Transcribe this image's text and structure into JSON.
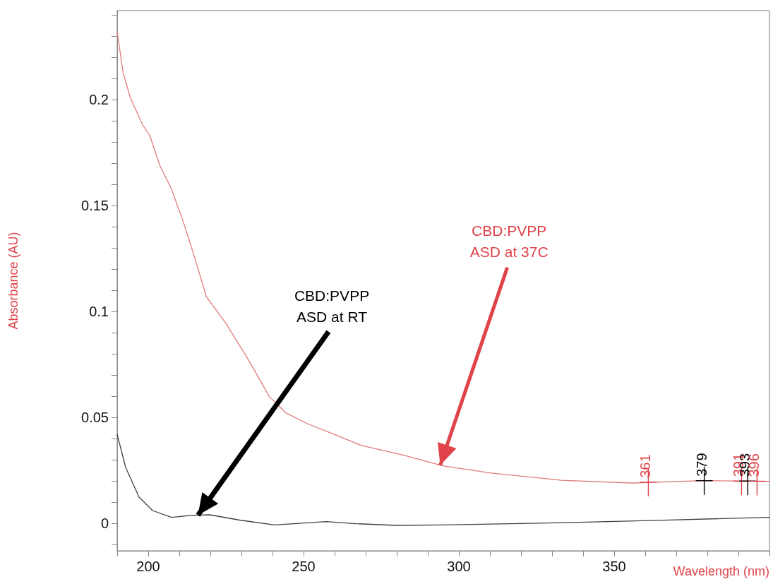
{
  "chart_data": {
    "type": "line",
    "xlabel": "Wavelength (nm)",
    "ylabel": "Absorbance (AU)",
    "xlim": [
      190,
      400
    ],
    "xticks": [
      {
        "value": 190,
        "label": null
      },
      200,
      {
        "value": 210,
        "label": null
      },
      {
        "value": 220,
        "label": null
      },
      {
        "value": 230,
        "label": null
      },
      {
        "value": 240,
        "label": null
      },
      250,
      {
        "value": 260,
        "label": null
      },
      {
        "value": 270,
        "label": null
      },
      {
        "value": 280,
        "label": null
      },
      {
        "value": 290,
        "label": null
      },
      300,
      {
        "value": 310,
        "label": null
      },
      {
        "value": 320,
        "label": null
      },
      {
        "value": 330,
        "label": null
      },
      {
        "value": 340,
        "label": null
      },
      350,
      {
        "value": 360,
        "label": null
      },
      {
        "value": 370,
        "label": null
      },
      {
        "value": 380,
        "label": null
      },
      {
        "value": 390,
        "label": null
      },
      {
        "value": 400,
        "label": null
      }
    ],
    "ylim": [
      -0.013,
      0.242
    ],
    "yticks": [
      {
        "value": -0.01,
        "label": null
      },
      0,
      {
        "value": 0.01,
        "label": null
      },
      {
        "value": 0.02,
        "label": null
      },
      {
        "value": 0.03,
        "label": null
      },
      {
        "value": 0.04,
        "label": null
      },
      0.05,
      {
        "value": 0.06,
        "label": null
      },
      {
        "value": 0.07,
        "label": null
      },
      {
        "value": 0.08,
        "label": null
      },
      {
        "value": 0.09,
        "label": null
      },
      0.1,
      {
        "value": 0.11,
        "label": null
      },
      {
        "value": 0.12,
        "label": null
      },
      {
        "value": 0.13,
        "label": null
      },
      {
        "value": 0.14,
        "label": null
      },
      0.15,
      {
        "value": 0.16,
        "label": null
      },
      {
        "value": 0.17,
        "label": null
      },
      {
        "value": 0.18,
        "label": null
      },
      {
        "value": 0.19,
        "label": null
      },
      0.2,
      {
        "value": 0.21,
        "label": null
      },
      {
        "value": 0.22,
        "label": null
      },
      {
        "value": 0.23,
        "label": null
      },
      {
        "value": 0.24,
        "label": null
      }
    ],
    "grid": false,
    "marker": "none",
    "line_style": "solid",
    "series": [
      {
        "color": "#404040",
        "x": [
          190,
          192.7,
          197,
          201.4,
          207.5,
          213.7,
          219.8,
          229.4,
          240.7,
          251.2,
          257.3,
          266.9,
          280,
          294.8,
          334,
          364,
          387,
          400
        ],
        "values": [
          0.042,
          0.0265,
          0.0124,
          0.006,
          0.0028,
          0.0037,
          0.004,
          0.0015,
          -0.0008,
          0.0002,
          0.0008,
          -0.0002,
          -0.001,
          -0.0008,
          0.0003,
          0.0014,
          0.0023,
          0.0028
        ]
      },
      {
        "color": "#e07a7a",
        "x": [
          190,
          191.9,
          194.2,
          198.2,
          200.5,
          203.7,
          207.4,
          211.2,
          215.1,
          218.7,
          225,
          232,
          239,
          244.3,
          251.2,
          260,
          268.7,
          281.8,
          294.8,
          310.3,
          333,
          355.8,
          378.5,
          400
        ],
        "values": [
          0.232,
          0.2127,
          0.201,
          0.188,
          0.183,
          0.169,
          0.158,
          0.1427,
          0.1247,
          0.107,
          0.0944,
          0.0778,
          0.0598,
          0.0521,
          0.047,
          0.0419,
          0.0367,
          0.0323,
          0.0271,
          0.0237,
          0.0203,
          0.019,
          0.0201,
          0.0198
        ]
      }
    ],
    "annotations": [
      {
        "text": "CBD:PVPP\nASD at RT",
        "x": 216,
        "y": 0.0038
      },
      {
        "text": "CBD:PVPP\nASD at 37C",
        "x": 294,
        "y": 0.0274
      },
      {
        "text": "361",
        "x": 361,
        "y": 0.0194
      },
      {
        "text": "379",
        "x": 379,
        "y": 0.0201
      },
      {
        "text": "391",
        "x": 391,
        "y": 0.0199
      },
      {
        "text": "393",
        "x": 393,
        "y": 0.0199
      },
      {
        "text": "396",
        "x": 396,
        "y": 0.0198
      }
    ]
  }
}
